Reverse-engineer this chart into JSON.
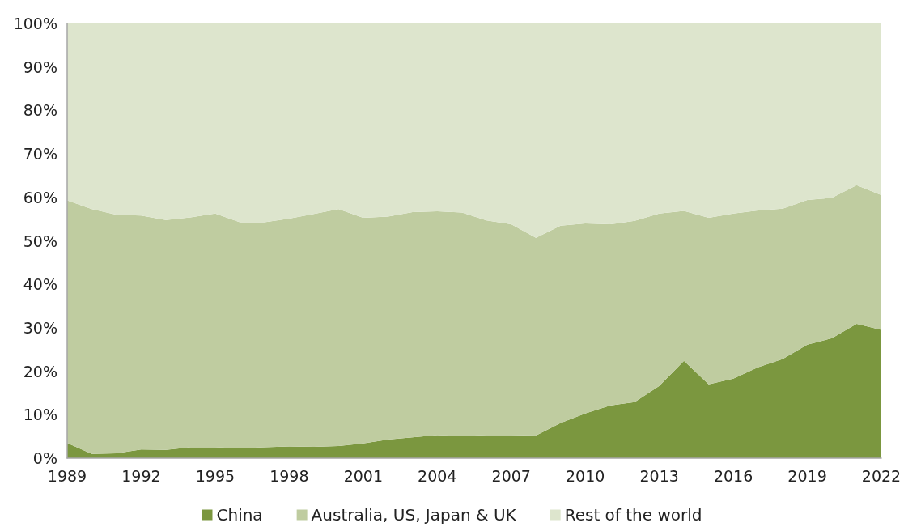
{
  "chart_data": {
    "type": "area",
    "stacked": true,
    "x": [
      1989,
      1990,
      1991,
      1992,
      1993,
      1994,
      1995,
      1996,
      1997,
      1998,
      1999,
      2000,
      2001,
      2002,
      2003,
      2004,
      2005,
      2006,
      2007,
      2008,
      2009,
      2010,
      2011,
      2012,
      2013,
      2014,
      2015,
      2016,
      2017,
      2018,
      2019,
      2020,
      2021,
      2022
    ],
    "series": [
      {
        "name": "China",
        "color": "#7b973f",
        "values": [
          3.5,
          1.0,
          1.1,
          2.0,
          1.9,
          2.5,
          2.5,
          2.3,
          2.5,
          2.7,
          2.6,
          2.8,
          3.4,
          4.3,
          4.8,
          5.3,
          5.1,
          5.3,
          5.3,
          5.2,
          8.1,
          10.3,
          12.1,
          12.9,
          16.6,
          22.4,
          17.0,
          18.3,
          20.9,
          22.8,
          26.1,
          27.6,
          30.9,
          29.5
        ]
      },
      {
        "name": "Australia, US, Japan & UK",
        "color": "#bfcca0",
        "values": [
          55.8,
          56.3,
          54.9,
          53.8,
          52.9,
          52.9,
          53.8,
          52.0,
          51.8,
          52.4,
          53.6,
          54.5,
          51.9,
          51.3,
          51.8,
          51.5,
          51.4,
          49.4,
          48.5,
          45.5,
          45.4,
          43.7,
          41.7,
          41.7,
          39.7,
          34.5,
          38.3,
          38.0,
          36.1,
          34.6,
          33.3,
          32.3,
          31.9,
          31.0
        ]
      },
      {
        "name": "Rest of the world",
        "color": "#dde5cd",
        "values": [
          40.7,
          42.7,
          44.0,
          44.2,
          45.2,
          44.6,
          43.7,
          45.7,
          45.7,
          44.9,
          43.8,
          42.7,
          44.7,
          44.4,
          43.4,
          43.2,
          43.5,
          45.3,
          46.2,
          49.3,
          46.5,
          46.0,
          46.2,
          45.4,
          43.7,
          43.1,
          44.7,
          43.7,
          43.0,
          42.6,
          40.6,
          40.1,
          37.2,
          39.5
        ]
      }
    ],
    "xlim": [
      1989,
      2022
    ],
    "xticks": [
      1989,
      1992,
      1995,
      1998,
      2001,
      2004,
      2007,
      2010,
      2013,
      2016,
      2019,
      2022
    ],
    "ylim": [
      0,
      100
    ],
    "yticks": [
      {
        "value": 0,
        "label": "0%"
      },
      {
        "value": 10,
        "label": "10%"
      },
      {
        "value": 20,
        "label": "20%"
      },
      {
        "value": 30,
        "label": "30%"
      },
      {
        "value": 40,
        "label": "40%"
      },
      {
        "value": 50,
        "label": "50%"
      },
      {
        "value": 60,
        "label": "60%"
      },
      {
        "value": 70,
        "label": "70%"
      },
      {
        "value": 80,
        "label": "80%"
      },
      {
        "value": 90,
        "label": "90%"
      },
      {
        "value": 100,
        "label": "100%"
      }
    ],
    "grid": false,
    "legend": "bottom"
  }
}
